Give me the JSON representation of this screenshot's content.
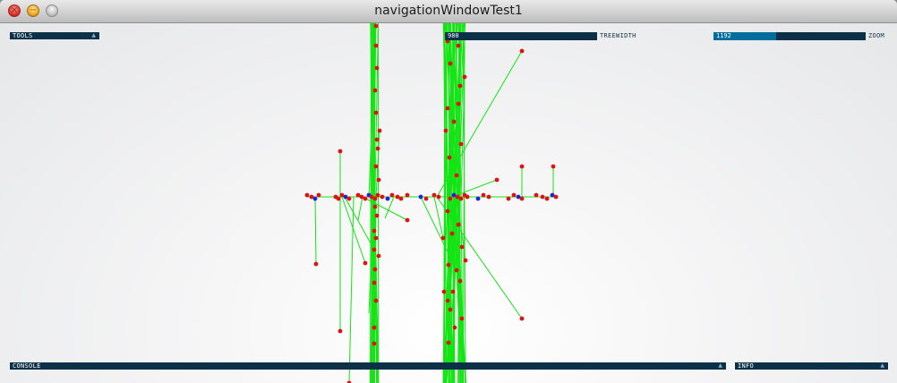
{
  "window": {
    "title": "navigationWindowTest1"
  },
  "controls": {
    "tools": {
      "label": "TOOLS",
      "arrow": "▲"
    },
    "treewidth": {
      "value": "980",
      "label": "TREEWIDTH",
      "fraction": 0.0
    },
    "zoom": {
      "value": "1192",
      "label": "ZOOM",
      "fraction": 0.41
    },
    "console": {
      "label": "CONSOLE",
      "arrow": "▲"
    },
    "info": {
      "label": "INFO",
      "arrow": "▲"
    }
  },
  "colors": {
    "panel": "#0d3049",
    "slider_fill": "#046d9b",
    "edge": "#14e414",
    "node": "#e41010",
    "axis_node": "#2020e8"
  }
}
